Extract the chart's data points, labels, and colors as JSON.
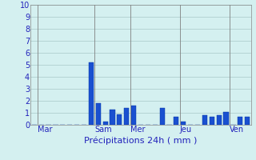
{
  "xlabel": "Précipitations 24h ( mm )",
  "ylim": [
    0,
    10
  ],
  "yticks": [
    0,
    1,
    2,
    3,
    4,
    5,
    6,
    7,
    8,
    9,
    10
  ],
  "background_color": "#d4f0f0",
  "bar_color": "#1a50d0",
  "bar_edge_color": "#0030a0",
  "grid_color": "#a8c8c8",
  "day_labels": [
    "Mar",
    "Sam",
    "Mer",
    "Jeu",
    "Ven"
  ],
  "day_tick_positions": [
    0.5,
    8.5,
    13.5,
    20.5,
    27.5
  ],
  "vline_positions": [
    0.5,
    8.5,
    13.5,
    20.5,
    27.5
  ],
  "bar_values": [
    0,
    0,
    0,
    0,
    0,
    0,
    0,
    0,
    5.2,
    1.8,
    0.3,
    1.3,
    0.9,
    1.4,
    1.6,
    0,
    0,
    0,
    1.4,
    0,
    0.7,
    0.3,
    0,
    0,
    0.8,
    0.7,
    0.8,
    1.05,
    0,
    0.7,
    0.7
  ],
  "xlabel_color": "#2222bb",
  "tick_color": "#2222bb",
  "axis_label_fontsize": 8,
  "tick_fontsize": 7,
  "bar_width": 0.7
}
